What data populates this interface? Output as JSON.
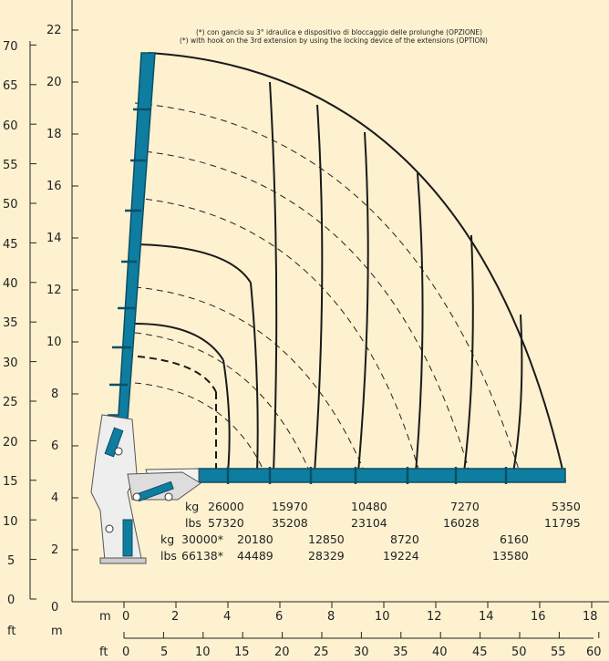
{
  "note": {
    "line_it": "(*) con gancio su 3° idraulica e dispositivo di bloccaggio delle prolunghe (OPZIONE)",
    "line_en": "(*) with hook on the 3rd extension by using the locking device of the extensions (OPTION)"
  },
  "axes": {
    "m_label": "m",
    "ft_label": "ft",
    "m_ticks_y": [
      "0",
      "2",
      "4",
      "6",
      "8",
      "10",
      "12",
      "14",
      "16",
      "18",
      "20",
      "22"
    ],
    "m_ticks_x": [
      "0",
      "2",
      "4",
      "6",
      "8",
      "10",
      "12",
      "14",
      "16",
      "18"
    ],
    "ft_ticks_y": [
      "0",
      "5",
      "10",
      "15",
      "20",
      "25",
      "30",
      "35",
      "40",
      "45",
      "50",
      "55",
      "60",
      "65",
      "70"
    ],
    "ft_ticks_x": [
      "0",
      "5",
      "10",
      "15",
      "20",
      "25",
      "30",
      "35",
      "40",
      "45",
      "50",
      "55",
      "60"
    ]
  },
  "loads": {
    "std": {
      "kg_label": "kg",
      "lbs_label": "lbs",
      "kg": [
        "26000",
        "15970",
        "10480",
        "7270",
        "5350"
      ],
      "lbs": [
        "57320",
        "35208",
        "23104",
        "16028",
        "11795"
      ]
    },
    "opt": {
      "kg_label": "kg",
      "lbs_label": "lbs",
      "kg": [
        "30000*",
        "20180",
        "12850",
        "8720",
        "6160"
      ],
      "lbs": [
        "66138*",
        "44489",
        "28329",
        "19224",
        "13580"
      ]
    }
  },
  "colors": {
    "background": "#fdf1d0",
    "boom": "#0f7da0",
    "boom_dark": "#0a4f66",
    "line": "#1a1a1a"
  },
  "icons": [
    "crane-base-illustration"
  ]
}
